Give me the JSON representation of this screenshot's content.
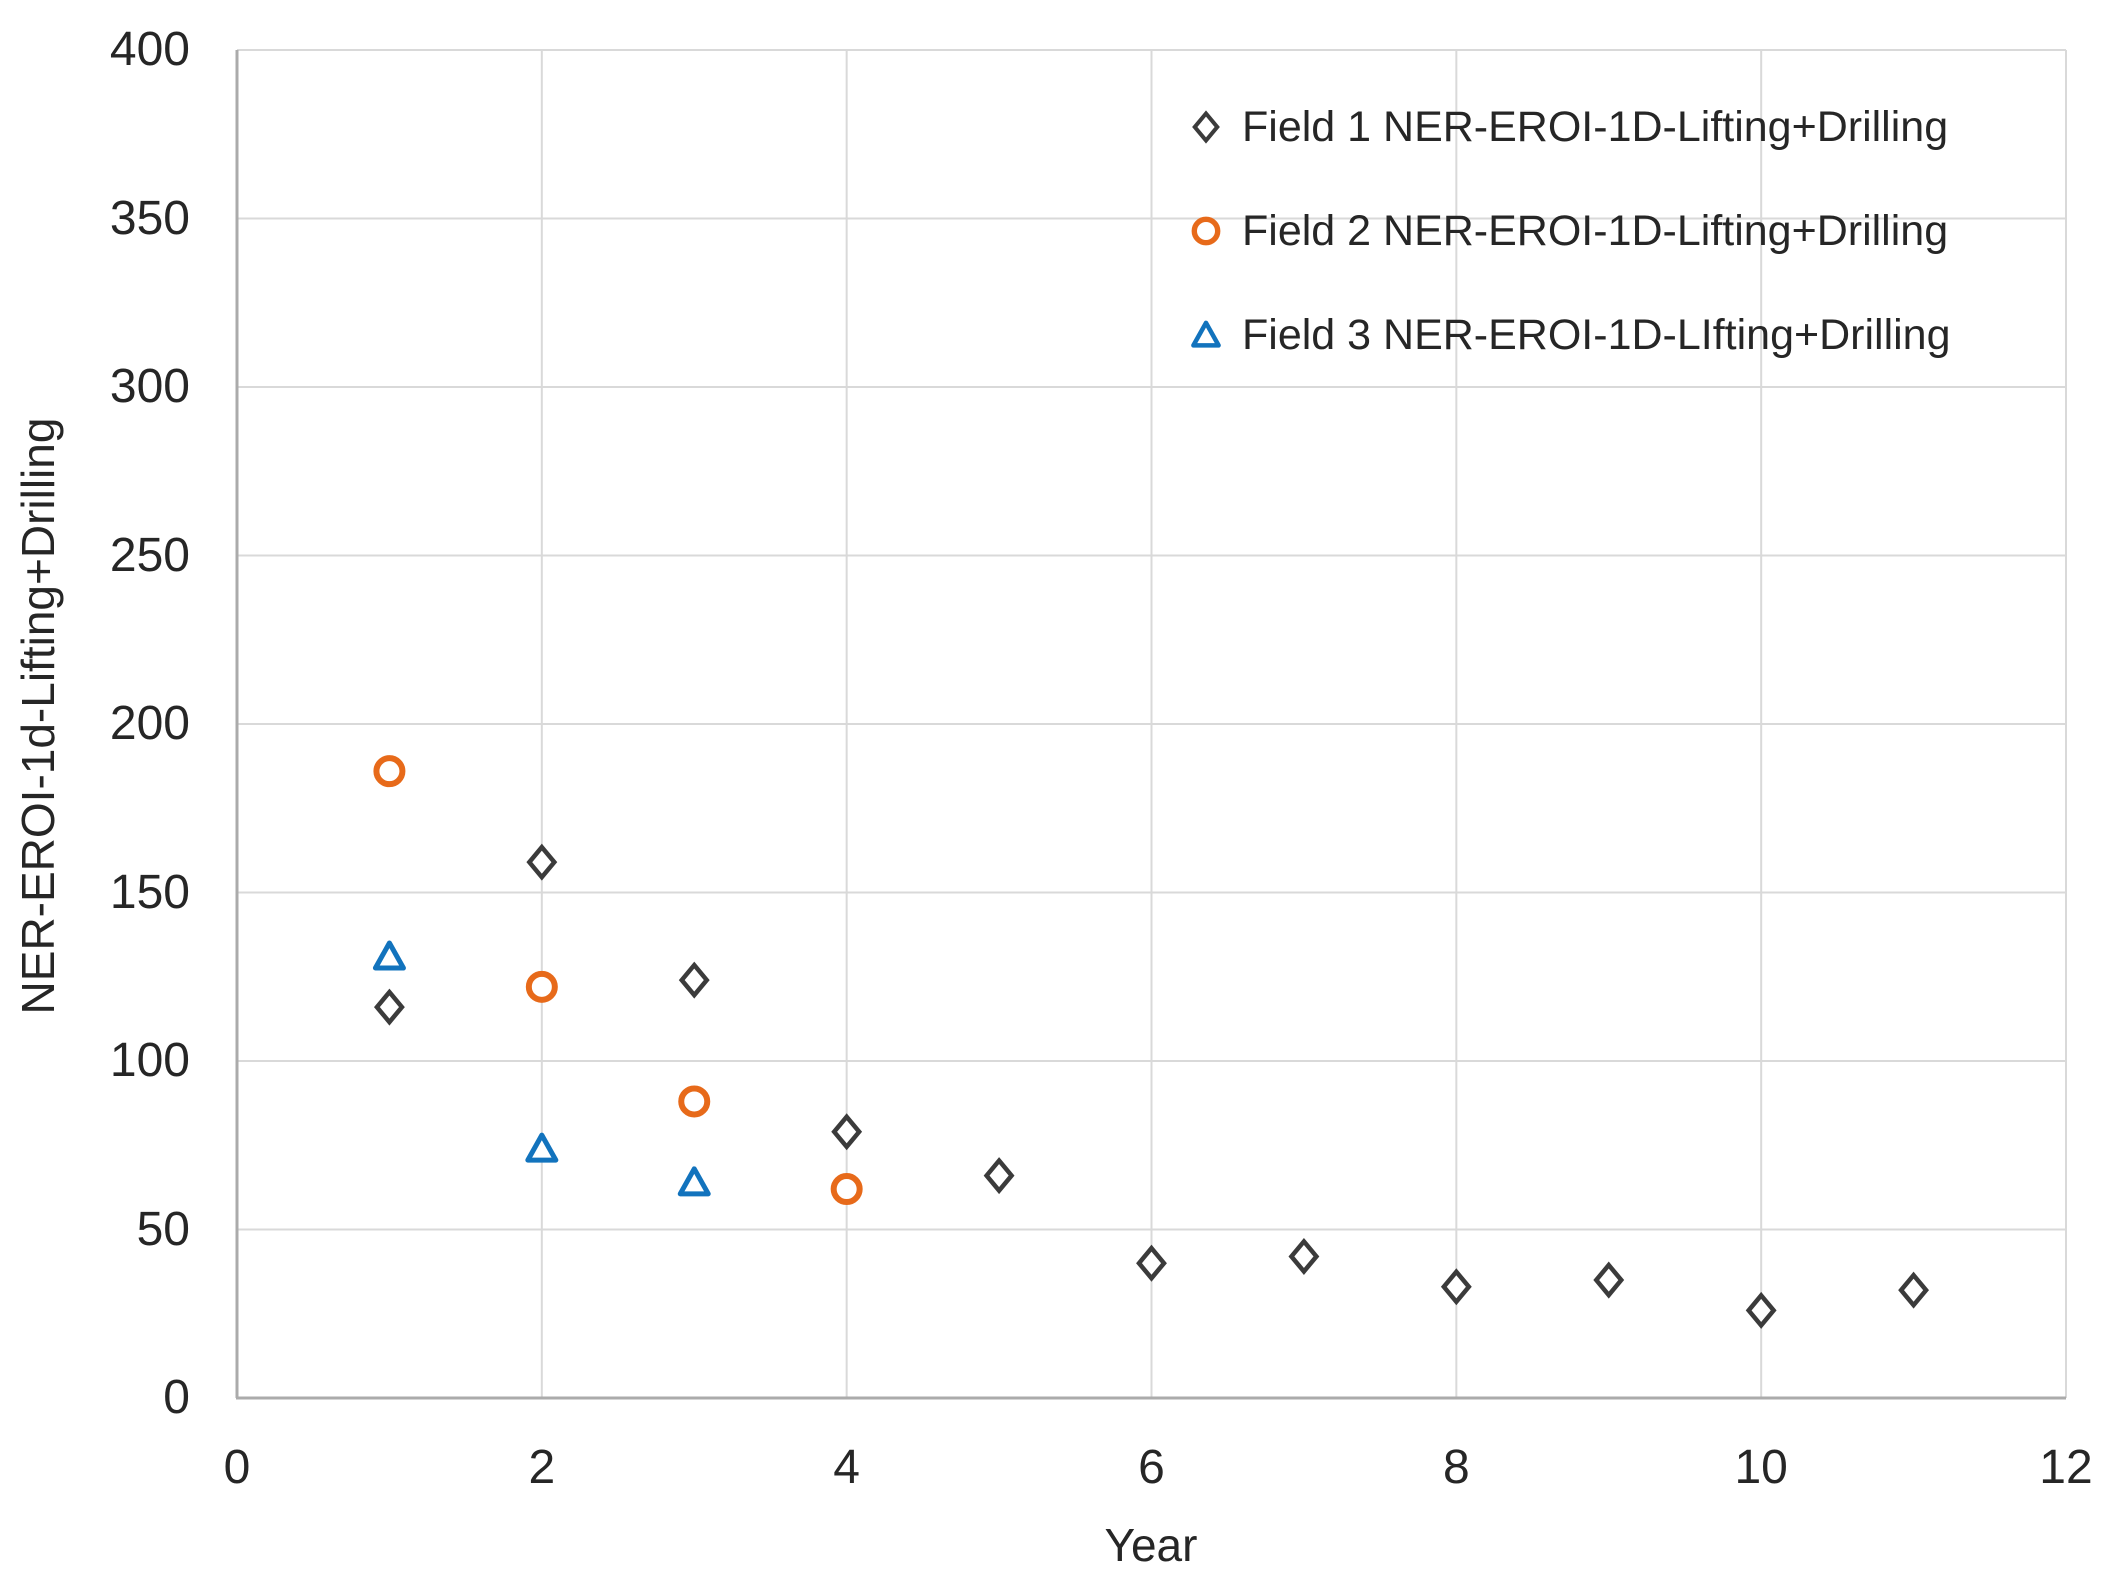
{
  "page": {
    "background": "#FFFFFF",
    "text_color": "#262626"
  },
  "chart_data": {
    "type": "scatter",
    "title": "",
    "xlabel": "Year",
    "ylabel": "NER-EROI-1d-Lifting+Drilling",
    "xlim": [
      0,
      12
    ],
    "ylim": [
      0,
      400
    ],
    "xticks": [
      0,
      2,
      4,
      6,
      8,
      10,
      12
    ],
    "yticks": [
      0,
      50,
      100,
      150,
      200,
      250,
      300,
      350,
      400
    ],
    "grid": true,
    "legend_position": "inside-top-right",
    "colors": {
      "gridline": "#D9D9D9",
      "axis_line": "#ABABAB",
      "text": "#262626",
      "marker_fill": "#FFFFFF"
    },
    "series": [
      {
        "name": "Field 1 NER-EROI-1D-Lifting+Drilling",
        "marker": "diamond",
        "color": "#3B3B3B",
        "points": [
          [
            1,
            116
          ],
          [
            2,
            159
          ],
          [
            3,
            124
          ],
          [
            4,
            79
          ],
          [
            5,
            66
          ],
          [
            6,
            40
          ],
          [
            7,
            42
          ],
          [
            8,
            33
          ],
          [
            9,
            35
          ],
          [
            10,
            26
          ],
          [
            11,
            32
          ]
        ]
      },
      {
        "name": "Field 2 NER-EROI-1D-Lifting+Drilling",
        "marker": "circle",
        "color": "#E76A1A",
        "points": [
          [
            1,
            186
          ],
          [
            2,
            122
          ],
          [
            3,
            88
          ],
          [
            4,
            62
          ]
        ]
      },
      {
        "name": "Field 3 NER-EROI-1D-LIfting+Drilling",
        "marker": "triangle",
        "color": "#1273BD",
        "points": [
          [
            1,
            131
          ],
          [
            2,
            74
          ],
          [
            3,
            64
          ]
        ]
      }
    ]
  }
}
